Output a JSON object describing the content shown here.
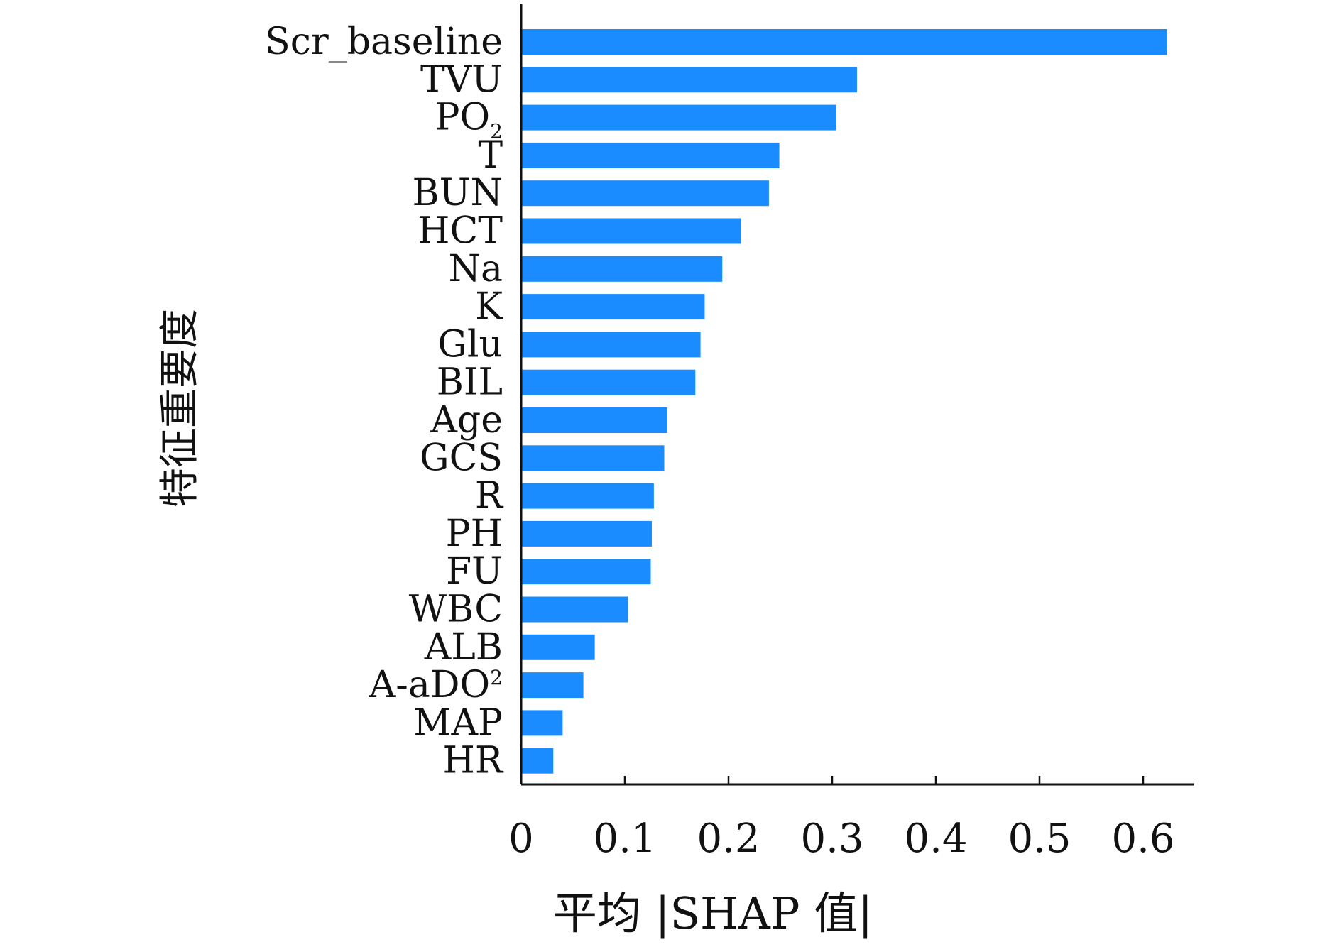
{
  "chart_data": {
    "type": "bar",
    "orientation": "horizontal",
    "title": "",
    "xlabel": "平均 |SHAP 值|",
    "ylabel": "特征重要度",
    "categories": [
      "Scr_baseline",
      "TVU",
      "PO2",
      "T",
      "BUN",
      "HCT",
      "Na",
      "K",
      "Glu",
      "BIL",
      "Age",
      "GCS",
      "R",
      "PH",
      "FU",
      "WBC",
      "ALB",
      "A-aDO2",
      "MAP",
      "HR"
    ],
    "category_labels": [
      {
        "main": "Scr_baseline"
      },
      {
        "main": "TVU"
      },
      {
        "main": "PO",
        "sub": "2"
      },
      {
        "main": "T"
      },
      {
        "main": "BUN"
      },
      {
        "main": "HCT"
      },
      {
        "main": "Na"
      },
      {
        "main": "K"
      },
      {
        "main": "Glu"
      },
      {
        "main": "BIL"
      },
      {
        "main": "Age"
      },
      {
        "main": "GCS"
      },
      {
        "main": "R"
      },
      {
        "main": "PH"
      },
      {
        "main": "FU"
      },
      {
        "main": "WBC"
      },
      {
        "main": "ALB"
      },
      {
        "main": "A-aDO",
        "sup": "2"
      },
      {
        "main": "MAP"
      },
      {
        "main": "HR"
      }
    ],
    "values": [
      0.623,
      0.324,
      0.304,
      0.249,
      0.239,
      0.212,
      0.194,
      0.177,
      0.173,
      0.168,
      0.141,
      0.138,
      0.128,
      0.126,
      0.125,
      0.103,
      0.071,
      0.06,
      0.04,
      0.031
    ],
    "xticks": [
      "0",
      "0.1",
      "0.2",
      "0.3",
      "0.4",
      "0.5",
      "0.6"
    ],
    "xtick_values": [
      0,
      0.1,
      0.2,
      0.3,
      0.4,
      0.5,
      0.6
    ],
    "xlim": [
      0,
      0.655
    ],
    "grid": false,
    "legend": "none",
    "bar_color": "#1a8cff",
    "axis_color": "#111111"
  }
}
